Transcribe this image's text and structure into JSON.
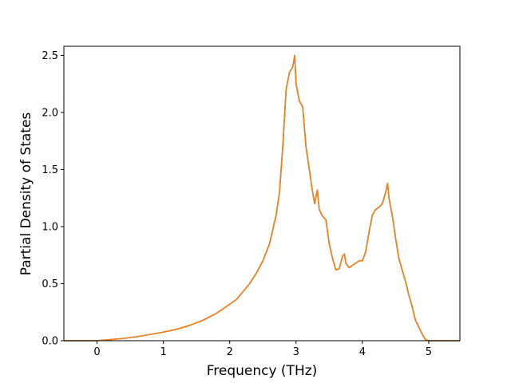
{
  "chart_data": {
    "type": "line",
    "xlabel": "Frequency (THz)",
    "ylabel": "Partial Density of States",
    "xlim": [
      -0.5,
      5.47
    ],
    "ylim": [
      0.0,
      2.58
    ],
    "xticks": [
      0,
      1,
      2,
      3,
      4,
      5
    ],
    "xtick_labels": [
      "0",
      "1",
      "2",
      "3",
      "4",
      "5"
    ],
    "yticks": [
      0.0,
      0.5,
      1.0,
      1.5,
      2.0,
      2.5
    ],
    "ytick_labels": [
      "0.0",
      "0.5",
      "1.0",
      "1.5",
      "2.0",
      "2.5"
    ],
    "grid": false,
    "series": [
      {
        "color": "#1f77b4",
        "x": [
          -0.5,
          0.0,
          0.2,
          0.4,
          0.6,
          0.8,
          1.0,
          1.2,
          1.4,
          1.6,
          1.8,
          2.0,
          2.1,
          2.2,
          2.3,
          2.4,
          2.5,
          2.6,
          2.7,
          2.75,
          2.8,
          2.85,
          2.9,
          2.95,
          2.98,
          3.0,
          3.05,
          3.1,
          3.15,
          3.2,
          3.25,
          3.28,
          3.32,
          3.35,
          3.4,
          3.45,
          3.5,
          3.55,
          3.6,
          3.65,
          3.7,
          3.73,
          3.75,
          3.8,
          3.85,
          3.9,
          3.95,
          4.0,
          4.05,
          4.1,
          4.15,
          4.2,
          4.25,
          4.3,
          4.35,
          4.38,
          4.4,
          4.45,
          4.5,
          4.55,
          4.6,
          4.65,
          4.7,
          4.75,
          4.8,
          4.85,
          4.9,
          4.95,
          5.0,
          5.2,
          5.47
        ],
        "y": [
          0.0,
          0.0,
          0.01,
          0.02,
          0.035,
          0.055,
          0.075,
          0.1,
          0.135,
          0.18,
          0.24,
          0.32,
          0.36,
          0.43,
          0.5,
          0.59,
          0.7,
          0.85,
          1.1,
          1.3,
          1.7,
          2.2,
          2.35,
          2.4,
          2.5,
          2.25,
          2.1,
          2.05,
          1.7,
          1.5,
          1.3,
          1.2,
          1.32,
          1.15,
          1.09,
          1.06,
          0.85,
          0.72,
          0.62,
          0.63,
          0.74,
          0.76,
          0.68,
          0.64,
          0.66,
          0.68,
          0.7,
          0.7,
          0.78,
          0.95,
          1.1,
          1.15,
          1.17,
          1.2,
          1.3,
          1.38,
          1.25,
          1.1,
          0.9,
          0.72,
          0.62,
          0.52,
          0.4,
          0.3,
          0.18,
          0.12,
          0.06,
          0.01,
          0.0,
          0.0,
          0.0
        ]
      },
      {
        "color": "#ff7f0e",
        "x": [
          -0.5,
          0.0,
          0.2,
          0.4,
          0.6,
          0.8,
          1.0,
          1.2,
          1.4,
          1.6,
          1.8,
          2.0,
          2.1,
          2.2,
          2.3,
          2.4,
          2.5,
          2.6,
          2.7,
          2.75,
          2.8,
          2.85,
          2.9,
          2.95,
          2.98,
          3.0,
          3.05,
          3.1,
          3.15,
          3.2,
          3.25,
          3.28,
          3.32,
          3.35,
          3.4,
          3.45,
          3.5,
          3.55,
          3.6,
          3.65,
          3.7,
          3.73,
          3.75,
          3.8,
          3.85,
          3.9,
          3.95,
          4.0,
          4.05,
          4.1,
          4.15,
          4.2,
          4.25,
          4.3,
          4.35,
          4.38,
          4.4,
          4.45,
          4.5,
          4.55,
          4.6,
          4.65,
          4.7,
          4.75,
          4.8,
          4.85,
          4.9,
          4.95,
          5.0,
          5.2,
          5.47
        ],
        "y": [
          0.0,
          0.0,
          0.01,
          0.02,
          0.035,
          0.055,
          0.075,
          0.1,
          0.135,
          0.18,
          0.24,
          0.32,
          0.36,
          0.43,
          0.5,
          0.59,
          0.7,
          0.85,
          1.1,
          1.3,
          1.7,
          2.2,
          2.35,
          2.4,
          2.5,
          2.25,
          2.1,
          2.05,
          1.7,
          1.5,
          1.3,
          1.2,
          1.32,
          1.15,
          1.09,
          1.06,
          0.85,
          0.72,
          0.62,
          0.63,
          0.74,
          0.76,
          0.68,
          0.64,
          0.66,
          0.68,
          0.7,
          0.7,
          0.78,
          0.95,
          1.1,
          1.15,
          1.17,
          1.2,
          1.3,
          1.38,
          1.25,
          1.1,
          0.9,
          0.72,
          0.62,
          0.52,
          0.4,
          0.3,
          0.18,
          0.12,
          0.06,
          0.01,
          0.0,
          0.0,
          0.0
        ]
      }
    ]
  }
}
